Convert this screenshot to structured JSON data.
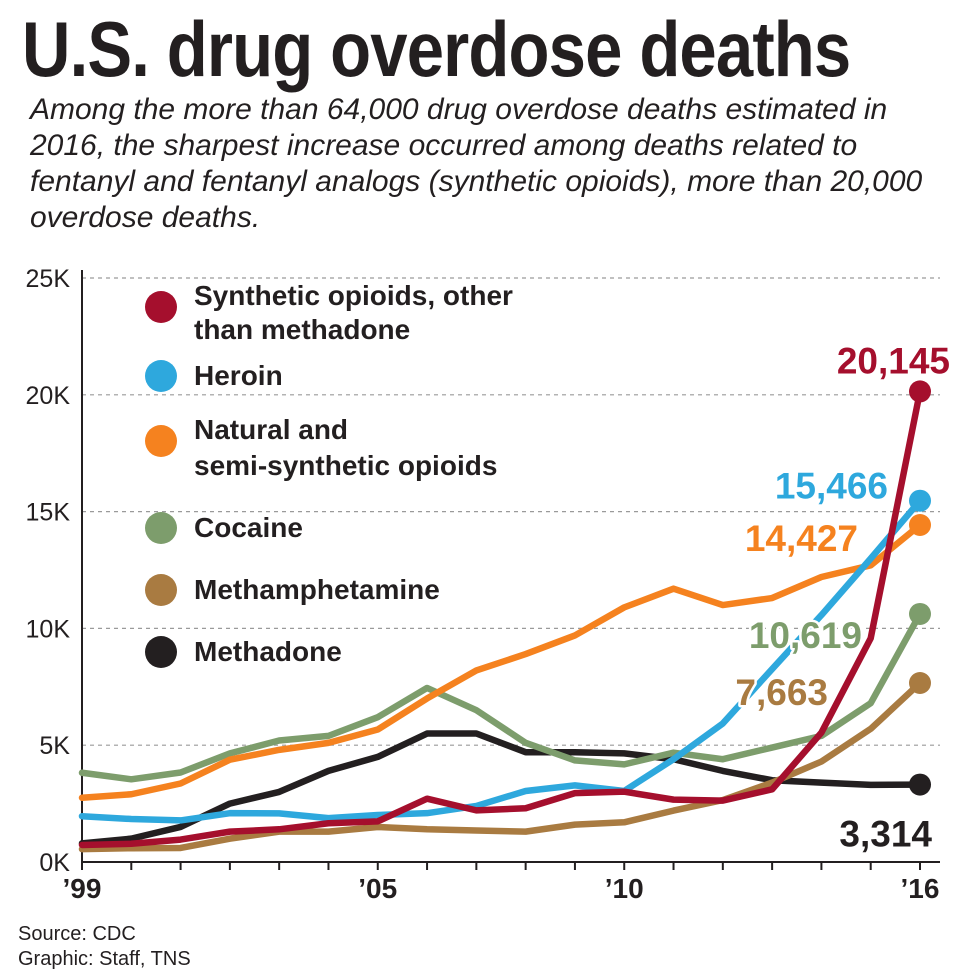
{
  "header": {
    "title": "U.S. drug overdose deaths",
    "subtitle": "Among the more than 64,000 drug overdose deaths estimated in 2016, the sharpest increase occurred among deaths related to fentanyl and fentanyl analogs (synthetic opioids), more than 20,000 overdose deaths."
  },
  "footer": {
    "source": "Source: CDC",
    "credit": "Graphic: Staff, TNS"
  },
  "chart_data": {
    "type": "line",
    "title": "U.S. drug overdose deaths",
    "xlabel": "",
    "ylabel": "",
    "xlim": [
      1999,
      2016
    ],
    "ylim": [
      0,
      25000
    ],
    "grid": "horizontal dashed",
    "legend_position": "top-left",
    "x_ticks": [
      {
        "value": 1999,
        "label": "’99"
      },
      {
        "value": 2005,
        "label": "’05"
      },
      {
        "value": 2010,
        "label": "’10"
      },
      {
        "value": 2016,
        "label": "’16"
      }
    ],
    "y_ticks": [
      {
        "value": 0,
        "label": "0K"
      },
      {
        "value": 5000,
        "label": "5K"
      },
      {
        "value": 10000,
        "label": "10K"
      },
      {
        "value": 15000,
        "label": "15K"
      },
      {
        "value": 20000,
        "label": "20K"
      },
      {
        "value": 25000,
        "label": "25K"
      }
    ],
    "x": [
      1999,
      2000,
      2001,
      2002,
      2003,
      2004,
      2005,
      2006,
      2007,
      2008,
      2009,
      2010,
      2011,
      2012,
      2013,
      2014,
      2015,
      2016
    ],
    "series": [
      {
        "name": "Synthetic opioids, other than methadone",
        "legend_lines": [
          "Synthetic opioids, other",
          "than methadone"
        ],
        "color": "#a50f2d",
        "values": [
          730,
          780,
          960,
          1300,
          1400,
          1660,
          1740,
          2710,
          2210,
          2300,
          2950,
          3010,
          2670,
          2630,
          3110,
          5540,
          9580,
          20145
        ],
        "end_label": "20,145"
      },
      {
        "name": "Heroin",
        "legend_lines": [
          "Heroin"
        ],
        "color": "#2ea8dd",
        "values": [
          1960,
          1840,
          1780,
          2090,
          2080,
          1880,
          2010,
          2090,
          2400,
          3040,
          3280,
          3040,
          4400,
          5930,
          8260,
          10570,
          12990,
          15466
        ],
        "end_label": "15,466"
      },
      {
        "name": "Natural and semi-synthetic opioids",
        "legend_lines": [
          "Natural and",
          "semi-synthetic opioids"
        ],
        "color": "#f5821f",
        "values": [
          2750,
          2900,
          3360,
          4380,
          4800,
          5100,
          5670,
          7000,
          8200,
          8900,
          9700,
          10900,
          11700,
          11000,
          11300,
          12200,
          12700,
          14427
        ],
        "end_label": "14,427"
      },
      {
        "name": "Cocaine",
        "legend_lines": [
          "Cocaine"
        ],
        "color": "#7d9d6c",
        "values": [
          3820,
          3540,
          3830,
          4650,
          5200,
          5400,
          6200,
          7450,
          6500,
          5100,
          4350,
          4180,
          4680,
          4400,
          4900,
          5400,
          6800,
          10619
        ],
        "end_label": "10,619"
      },
      {
        "name": "Methamphetamine",
        "legend_lines": [
          "Methamphetamine"
        ],
        "color": "#a97b41",
        "values": [
          550,
          590,
          600,
          1000,
          1300,
          1300,
          1500,
          1400,
          1350,
          1300,
          1600,
          1700,
          2200,
          2650,
          3400,
          4300,
          5700,
          7663
        ],
        "end_label": "7,663"
      },
      {
        "name": "Methadone",
        "legend_lines": [
          "Methadone"
        ],
        "color": "#231f20",
        "values": [
          800,
          1000,
          1500,
          2500,
          3000,
          3900,
          4500,
          5500,
          5500,
          4700,
          4700,
          4650,
          4400,
          3900,
          3500,
          3400,
          3300,
          3314
        ],
        "end_label": "3,314"
      }
    ]
  }
}
